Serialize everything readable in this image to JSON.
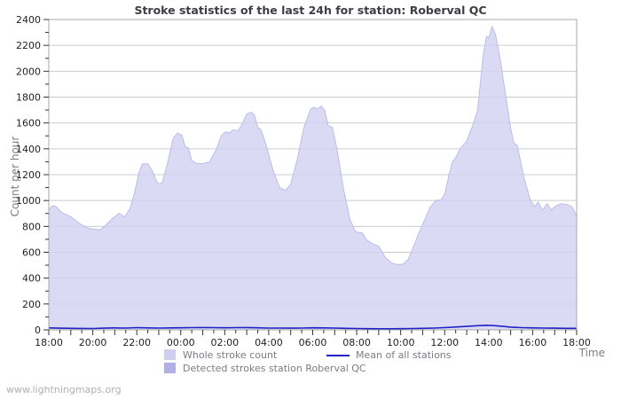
{
  "title": "Stroke statistics of the last 24h for station: Roberval QC",
  "axes": {
    "ylabel": "Count per hour",
    "xlabel": "Time"
  },
  "watermark": "www.lightningmaps.org",
  "legend": {
    "items": [
      {
        "label": "Whole stroke count",
        "swatch_color": "#cfcff2",
        "kind": "area"
      },
      {
        "label": "Detected strokes station Roberval QC",
        "swatch_color": "#b1b1e8",
        "kind": "area"
      },
      {
        "label": "Mean of all stations",
        "swatch_color": "#2121c8",
        "kind": "line"
      }
    ]
  },
  "colors": {
    "area_fill": "#d2d2f3",
    "area_edge": "#bcbcec",
    "detected_fill": "#b1b1e8",
    "mean_line": "#2121c8",
    "grid": "#cccccc",
    "plot_border": "#a8a8a8",
    "tick_text": "#1f1f1f",
    "muted_text": "#7c7c84"
  },
  "chart_data": {
    "type": "area",
    "title": "Stroke statistics of the last 24h for station: Roberval QC",
    "xlabel": "Time",
    "ylabel": "Count per hour",
    "x_hours": 24,
    "x_start_label_hour": 18,
    "x_tick_labels": [
      "18:00",
      "20:00",
      "22:00",
      "00:00",
      "02:00",
      "04:00",
      "06:00",
      "08:00",
      "10:00",
      "12:00",
      "14:00",
      "16:00",
      "18:00"
    ],
    "x_label_every_hours": 2,
    "x_major_tick_hours": 1,
    "x_minor_tick_hours": 0.5,
    "ylim": [
      0,
      2400
    ],
    "y_tick_step": 200,
    "y_minor_step": 100,
    "grid": "horizontal",
    "legend_position": "bottom",
    "series": [
      {
        "name": "Whole stroke count",
        "type": "area",
        "color": "#d2d2f3",
        "points": [
          [
            0,
            930
          ],
          [
            0.17,
            960
          ],
          [
            0.33,
            952
          ],
          [
            0.58,
            908
          ],
          [
            1.0,
            875
          ],
          [
            1.4,
            822
          ],
          [
            1.75,
            788
          ],
          [
            2.0,
            778
          ],
          [
            2.35,
            775
          ],
          [
            2.6,
            812
          ],
          [
            2.9,
            862
          ],
          [
            3.2,
            902
          ],
          [
            3.45,
            872
          ],
          [
            3.7,
            940
          ],
          [
            3.9,
            1060
          ],
          [
            4.1,
            1215
          ],
          [
            4.25,
            1282
          ],
          [
            4.5,
            1285
          ],
          [
            4.7,
            1230
          ],
          [
            4.95,
            1130
          ],
          [
            5.15,
            1135
          ],
          [
            5.4,
            1290
          ],
          [
            5.65,
            1480
          ],
          [
            5.85,
            1522
          ],
          [
            6.05,
            1505
          ],
          [
            6.2,
            1418
          ],
          [
            6.35,
            1405
          ],
          [
            6.5,
            1310
          ],
          [
            6.7,
            1288
          ],
          [
            7.0,
            1285
          ],
          [
            7.3,
            1298
          ],
          [
            7.6,
            1390
          ],
          [
            7.85,
            1505
          ],
          [
            8.05,
            1532
          ],
          [
            8.2,
            1522
          ],
          [
            8.4,
            1548
          ],
          [
            8.6,
            1538
          ],
          [
            8.8,
            1595
          ],
          [
            9.0,
            1668
          ],
          [
            9.2,
            1685
          ],
          [
            9.35,
            1660
          ],
          [
            9.5,
            1565
          ],
          [
            9.65,
            1548
          ],
          [
            9.9,
            1420
          ],
          [
            10.2,
            1230
          ],
          [
            10.5,
            1100
          ],
          [
            10.75,
            1078
          ],
          [
            11.0,
            1125
          ],
          [
            11.3,
            1320
          ],
          [
            11.6,
            1565
          ],
          [
            11.9,
            1705
          ],
          [
            12.05,
            1722
          ],
          [
            12.2,
            1708
          ],
          [
            12.4,
            1730
          ],
          [
            12.55,
            1695
          ],
          [
            12.7,
            1580
          ],
          [
            12.9,
            1565
          ],
          [
            13.1,
            1400
          ],
          [
            13.4,
            1090
          ],
          [
            13.7,
            850
          ],
          [
            13.95,
            758
          ],
          [
            14.25,
            750
          ],
          [
            14.45,
            695
          ],
          [
            14.7,
            668
          ],
          [
            15.0,
            645
          ],
          [
            15.3,
            560
          ],
          [
            15.6,
            515
          ],
          [
            15.85,
            505
          ],
          [
            16.1,
            508
          ],
          [
            16.35,
            545
          ],
          [
            16.6,
            650
          ],
          [
            16.85,
            760
          ],
          [
            17.0,
            815
          ],
          [
            17.34,
            950
          ],
          [
            17.6,
            1000
          ],
          [
            17.83,
            1005
          ],
          [
            18.0,
            1050
          ],
          [
            18.2,
            1200
          ],
          [
            18.35,
            1300
          ],
          [
            18.5,
            1330
          ],
          [
            18.7,
            1400
          ],
          [
            19.0,
            1460
          ],
          [
            19.3,
            1590
          ],
          [
            19.5,
            1705
          ],
          [
            19.75,
            2120
          ],
          [
            19.9,
            2270
          ],
          [
            20.0,
            2255
          ],
          [
            20.15,
            2345
          ],
          [
            20.3,
            2290
          ],
          [
            20.5,
            2120
          ],
          [
            20.75,
            1840
          ],
          [
            21.0,
            1560
          ],
          [
            21.15,
            1445
          ],
          [
            21.3,
            1425
          ],
          [
            21.6,
            1180
          ],
          [
            21.9,
            1000
          ],
          [
            22.1,
            952
          ],
          [
            22.25,
            988
          ],
          [
            22.45,
            925
          ],
          [
            22.65,
            975
          ],
          [
            22.85,
            928
          ],
          [
            23.05,
            958
          ],
          [
            23.3,
            975
          ],
          [
            23.6,
            968
          ],
          [
            23.8,
            950
          ],
          [
            24.0,
            878
          ]
        ]
      },
      {
        "name": "Detected strokes station Roberval QC",
        "type": "area",
        "color": "#b1b1e8",
        "points": [
          [
            0,
            0
          ],
          [
            24,
            0
          ]
        ]
      },
      {
        "name": "Mean of all stations",
        "type": "line",
        "color": "#2121c8",
        "points": [
          [
            0,
            15
          ],
          [
            0.5,
            13
          ],
          [
            1,
            12
          ],
          [
            1.5,
            11
          ],
          [
            2,
            10
          ],
          [
            2.5,
            13
          ],
          [
            3,
            15
          ],
          [
            3.5,
            14
          ],
          [
            4,
            17
          ],
          [
            4.5,
            15
          ],
          [
            5,
            14
          ],
          [
            5.5,
            15
          ],
          [
            6,
            16
          ],
          [
            6.5,
            17
          ],
          [
            7,
            18
          ],
          [
            7.5,
            17
          ],
          [
            8,
            16
          ],
          [
            8.5,
            17
          ],
          [
            9,
            18
          ],
          [
            9.5,
            16
          ],
          [
            10,
            14
          ],
          [
            10.5,
            14
          ],
          [
            11,
            13
          ],
          [
            11.5,
            14
          ],
          [
            12,
            16
          ],
          [
            12.5,
            15
          ],
          [
            13,
            14
          ],
          [
            13.5,
            12
          ],
          [
            14,
            10
          ],
          [
            14.5,
            9
          ],
          [
            15,
            8
          ],
          [
            15.5,
            8
          ],
          [
            16,
            9
          ],
          [
            16.5,
            10
          ],
          [
            17,
            12
          ],
          [
            17.5,
            14
          ],
          [
            18,
            17
          ],
          [
            18.5,
            22
          ],
          [
            19,
            27
          ],
          [
            19.5,
            32
          ],
          [
            19.9,
            35
          ],
          [
            20.3,
            32
          ],
          [
            20.7,
            26
          ],
          [
            21,
            21
          ],
          [
            21.5,
            17
          ],
          [
            22,
            15
          ],
          [
            22.5,
            14
          ],
          [
            23,
            13
          ],
          [
            23.5,
            12
          ],
          [
            24,
            12
          ]
        ]
      }
    ]
  }
}
